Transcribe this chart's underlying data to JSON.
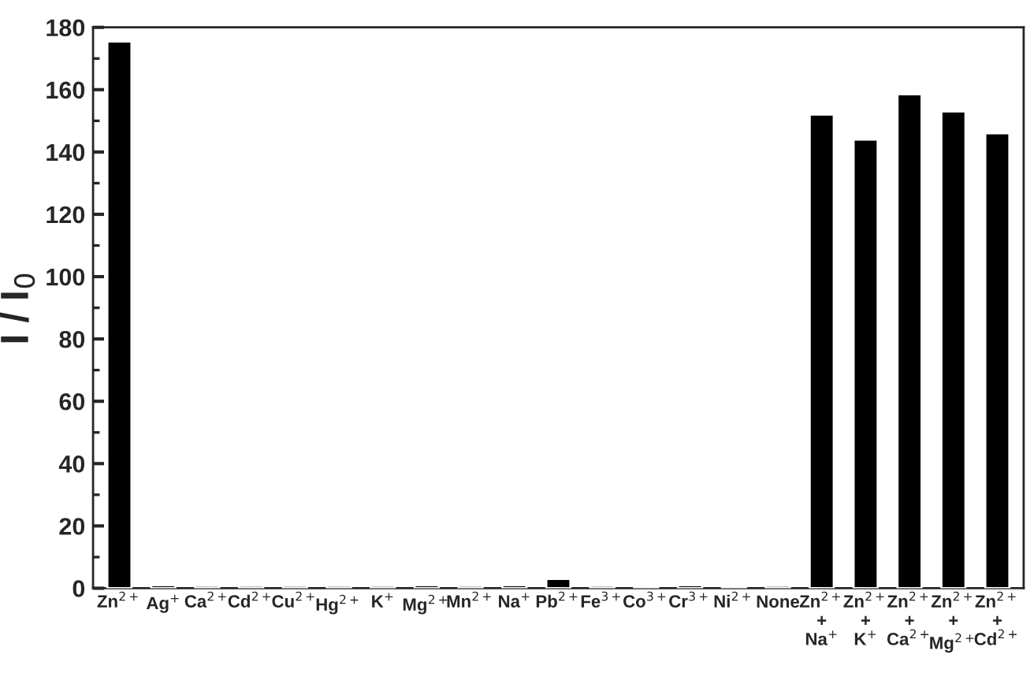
{
  "chart_data": {
    "type": "bar",
    "ylabel": "I / I$_{0}$",
    "categories": [
      "Zn$^{2+}$",
      "Ag$^{+}$",
      "Ca$^{2+}$",
      "Cd$^{2+}$",
      "Cu$^{2+}$",
      "Hg$^{2+}$",
      "K$^{+}$",
      "Mg$^{2+}$",
      "Mn$^{2+}$",
      "Na$^{+}$",
      "Pb$^{2+}$",
      "Fe$^{3+}$",
      "Co$^{3+}$",
      "Cr$^{3+}$",
      "Ni$^{2+}$",
      "None",
      "Zn$^{2+}$\n+\nNa$^{+}$",
      "Zn$^{2+}$\n+\nK$^{+}$",
      "Zn$^{2+}$\n+\nCa$^{2+}$",
      "Zn$^{2+}$\n+\nMg$^{2+}$",
      "Zn$^{2+}$\n+\nCd$^{2+}$"
    ],
    "values": [
      175.5,
      1,
      0.8,
      0.8,
      0.8,
      0.8,
      0.8,
      1,
      0.8,
      1,
      3,
      0.8,
      0.5,
      1,
      0.5,
      0.8,
      152,
      144,
      158.5,
      153,
      146
    ],
    "color": "#000000",
    "ylim": [
      0,
      180
    ],
    "yticks": [
      0,
      20,
      40,
      60,
      80,
      100,
      120,
      140,
      160,
      180
    ],
    "grid": false,
    "legend": false
  }
}
